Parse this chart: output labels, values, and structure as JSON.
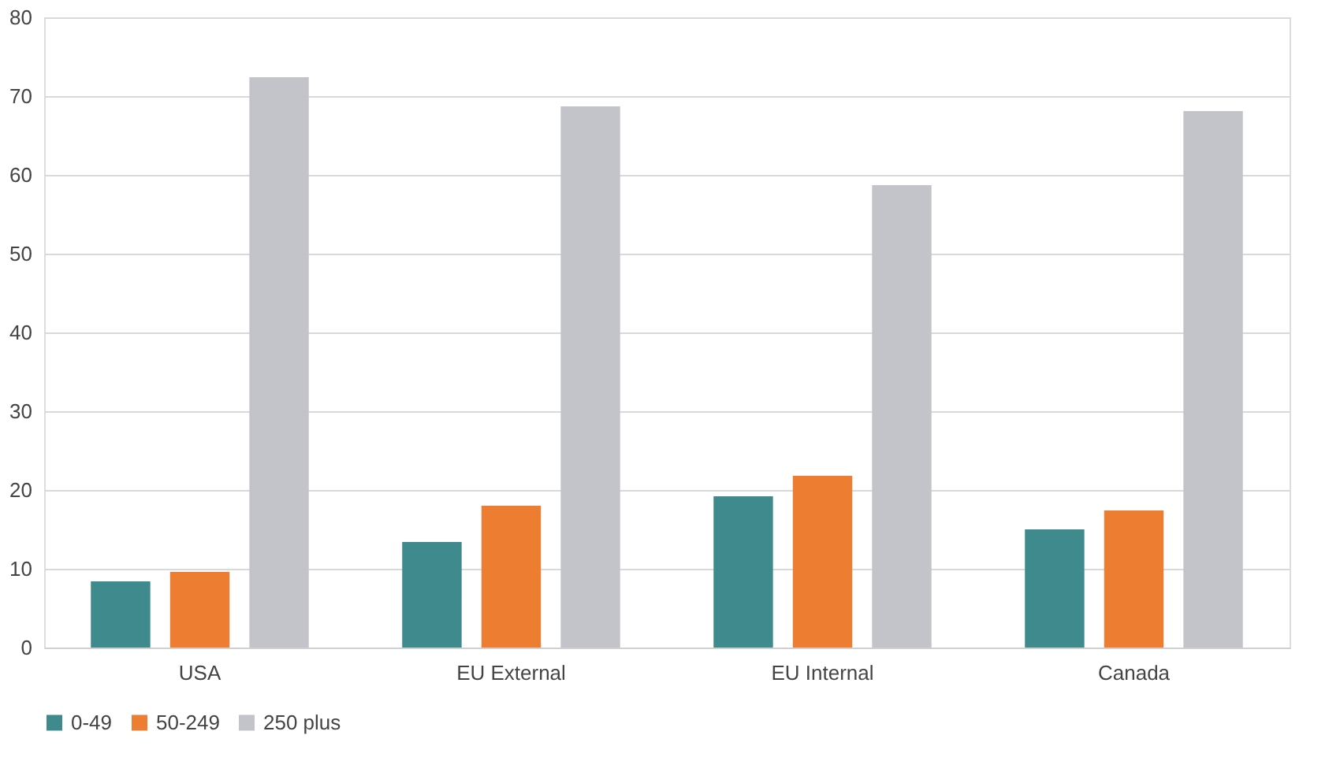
{
  "chart_data": {
    "type": "bar",
    "categories": [
      "USA",
      "EU External",
      "EU Internal",
      "Canada"
    ],
    "series": [
      {
        "name": "0-49",
        "color": "#3f8a8c",
        "values": [
          8.4,
          13.4,
          19.2,
          15.0
        ]
      },
      {
        "name": "50-249",
        "color": "#ed7d31",
        "values": [
          9.6,
          18.0,
          21.8,
          17.4
        ]
      },
      {
        "name": "250 plus",
        "color": "#c3c3ca",
        "values": [
          72.4,
          68.7,
          58.7,
          68.1
        ]
      }
    ],
    "ylim": [
      0,
      80
    ],
    "yticks": [
      0,
      10,
      20,
      30,
      40,
      50,
      60,
      70,
      80
    ],
    "grid": "y",
    "legend": "bottom"
  }
}
